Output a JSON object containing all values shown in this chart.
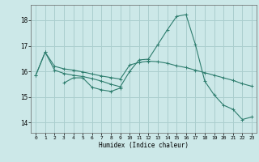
{
  "xlabel": "Humidex (Indice chaleur)",
  "bg_color": "#cce8e8",
  "grid_color": "#aacece",
  "line_color": "#2e7d6e",
  "xlim": [
    -0.5,
    23.5
  ],
  "ylim": [
    13.6,
    18.6
  ],
  "yticks": [
    14,
    15,
    16,
    17,
    18
  ],
  "xticks": [
    0,
    1,
    2,
    3,
    4,
    5,
    6,
    7,
    8,
    9,
    10,
    11,
    12,
    13,
    14,
    15,
    16,
    17,
    18,
    19,
    20,
    21,
    22,
    23
  ],
  "s1_x": [
    0,
    1,
    2,
    3,
    4,
    5,
    6,
    7,
    8,
    9,
    10,
    11,
    12,
    13,
    14,
    15,
    16,
    17,
    18,
    19,
    20,
    21,
    22,
    23
  ],
  "s1_y": [
    15.85,
    16.75,
    16.2,
    16.1,
    16.05,
    15.98,
    15.9,
    15.82,
    15.76,
    15.7,
    16.25,
    16.35,
    16.4,
    16.38,
    16.32,
    16.22,
    16.15,
    16.05,
    15.95,
    15.85,
    15.75,
    15.65,
    15.52,
    15.42
  ],
  "s2_x": [
    3,
    4,
    5,
    6,
    7,
    8,
    9
  ],
  "s2_y": [
    15.55,
    15.75,
    15.75,
    15.38,
    15.28,
    15.22,
    15.35
  ],
  "s3_x": [
    0,
    1,
    2,
    3,
    4,
    5,
    6,
    7,
    8,
    9,
    10,
    11,
    12,
    13,
    14,
    15,
    16,
    17,
    18,
    19,
    20,
    21,
    22,
    23
  ],
  "s3_y": [
    15.85,
    16.75,
    16.05,
    15.92,
    15.85,
    15.8,
    15.72,
    15.62,
    15.5,
    15.4,
    16.0,
    16.45,
    16.48,
    17.05,
    17.62,
    18.15,
    18.22,
    17.05,
    15.62,
    15.08,
    14.68,
    14.52,
    14.12,
    14.22
  ]
}
